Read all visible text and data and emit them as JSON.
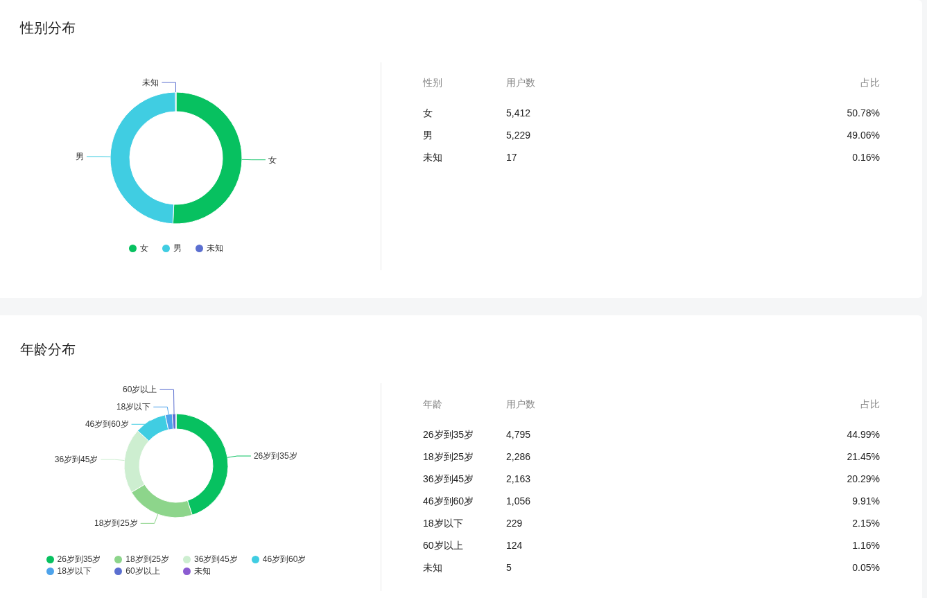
{
  "chart_data": [
    {
      "type": "donut",
      "title": "性别分布",
      "categories": [
        "女",
        "男",
        "未知"
      ],
      "values": [
        50.78,
        49.06,
        0.16
      ],
      "colors": [
        "#07c160",
        "#40cde2",
        "#5b6fd0"
      ],
      "legend": "bottom"
    },
    {
      "type": "other",
      "annotations": [
        "性别",
        "用户数",
        "占比",
        "女",
        "5,412",
        "50.78%",
        "男",
        "5,229",
        "49.06%",
        "未知",
        "17",
        "0.16%"
      ]
    },
    {
      "type": "donut",
      "title": "年龄分布",
      "categories": [
        "26岁到35岁",
        "18岁到25岁",
        "36岁到45岁",
        "46岁到60岁",
        "18岁以下",
        "60岁以上",
        "未知"
      ],
      "values": [
        44.99,
        21.45,
        20.29,
        9.91,
        2.15,
        1.16,
        0.05
      ],
      "colors": [
        "#07c160",
        "#8dd58b",
        "#cdeed0",
        "#40cde2",
        "#4ea3eb",
        "#5b6fd0",
        "#8b5cd1"
      ],
      "legend": "bottom"
    },
    {
      "type": "other",
      "annotations": [
        "年龄",
        "用户数",
        "占比",
        "26岁到35岁",
        "4,795",
        "44.99%",
        "18岁到25岁",
        "2,286",
        "21.45%",
        "36岁到45岁",
        "2,163",
        "20.29%",
        "46岁到60岁",
        "1,056",
        "9.91%",
        "18岁以下",
        "229",
        "2.15%",
        "60岁以上",
        "124",
        "1.16%",
        "未知",
        "5",
        "0.05%"
      ]
    }
  ]
}
